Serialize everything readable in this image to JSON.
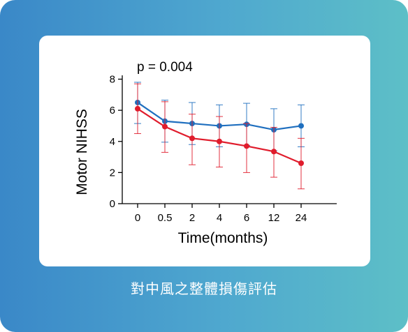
{
  "caption": "對中風之整體損傷評估",
  "chart_data": {
    "type": "line",
    "annotation": "p = 0.004",
    "xlabel": "Time(months)",
    "ylabel": "Motor NIHSS",
    "categories": [
      "0",
      "0.5",
      "2",
      "4",
      "6",
      "12",
      "24"
    ],
    "ylim": [
      0,
      8
    ],
    "yticks": [
      0,
      2,
      4,
      6,
      8
    ],
    "grid": false,
    "series": [
      {
        "color": "#1f6fbf",
        "values": [
          6.5,
          5.3,
          5.15,
          5.0,
          5.1,
          4.75,
          5.0
        ],
        "err_upper": [
          7.8,
          6.65,
          6.5,
          6.35,
          6.45,
          6.1,
          6.35
        ],
        "err_lower": [
          5.15,
          3.95,
          3.8,
          3.65,
          3.75,
          3.4,
          3.65
        ]
      },
      {
        "color": "#e01c2c",
        "values": [
          6.1,
          4.95,
          4.2,
          4.0,
          3.7,
          3.35,
          2.6
        ],
        "err_upper": [
          7.7,
          6.55,
          5.75,
          5.6,
          5.15,
          4.9,
          4.2
        ],
        "err_lower": [
          4.5,
          3.3,
          2.5,
          2.35,
          2.0,
          1.7,
          0.95
        ]
      }
    ]
  }
}
